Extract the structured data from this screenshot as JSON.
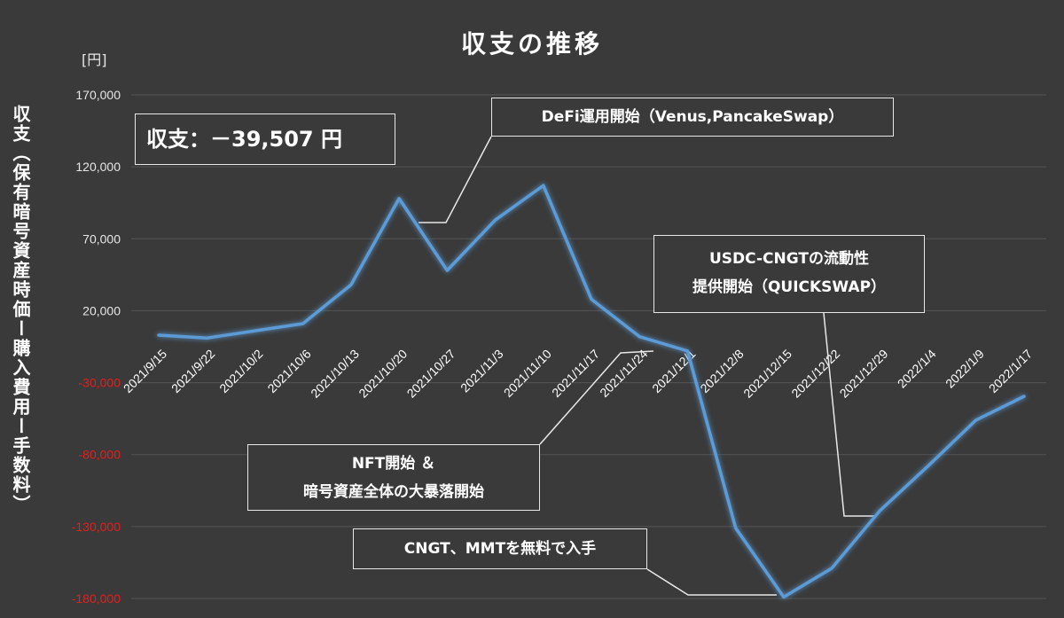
{
  "chart_data": {
    "type": "line",
    "title": "収支の推移",
    "unit_label": "[円]",
    "ylabel": "収支（保有暗号資産時価ー購入費用ー手数料）",
    "xlabel": "",
    "ylim": [
      -180000,
      170000
    ],
    "yticks": [
      {
        "value": 170000,
        "label": "170,000",
        "color": "#e6e6e6"
      },
      {
        "value": 120000,
        "label": "120,000",
        "color": "#e6e6e6"
      },
      {
        "value": 70000,
        "label": "70,000",
        "color": "#e6e6e6"
      },
      {
        "value": 20000,
        "label": "20,000",
        "color": "#e6e6e6"
      },
      {
        "value": -30000,
        "label": "-30,000",
        "color": "#e02020"
      },
      {
        "value": -80000,
        "label": "-80,000",
        "color": "#e02020"
      },
      {
        "value": -130000,
        "label": "-130,000",
        "color": "#e02020"
      },
      {
        "value": -180000,
        "label": "-180,000",
        "color": "#e02020"
      }
    ],
    "grid": true,
    "legend": "none",
    "line_color": "#5b9bd5",
    "categories": [
      "2021/9/15",
      "2021/9/22",
      "2021/10/2",
      "2021/10/6",
      "2021/10/13",
      "2021/10/20",
      "2021/10/27",
      "2021/11/3",
      "2021/11/10",
      "2021/11/17",
      "2021/11/24",
      "2021/12/1",
      "2021/12/8",
      "2021/12/15",
      "2021/12/22",
      "2021/12/29",
      "2022/1/4",
      "2022/1/9",
      "2022/1/17"
    ],
    "series": [
      {
        "values": [
          3000,
          1000,
          6000,
          11000,
          38000,
          98000,
          48000,
          83000,
          107000,
          28000,
          2000,
          -8000,
          -131000,
          -179000,
          -159000,
          -119000,
          -88000,
          -56000,
          -39507
        ]
      }
    ]
  },
  "annotations": {
    "summary": "収支：－39,507 円",
    "defi": "DeFi運用開始（Venus,PancakeSwap）",
    "usdc_line1": "USDC-CNGTの流動性",
    "usdc_line2": "提供開始（QUICKSWAP）",
    "nft_line1": "NFT開始 ＆",
    "nft_line2": "暗号資産全体の大暴落開始",
    "cngt": "CNGT、MMTを無料で入手"
  }
}
